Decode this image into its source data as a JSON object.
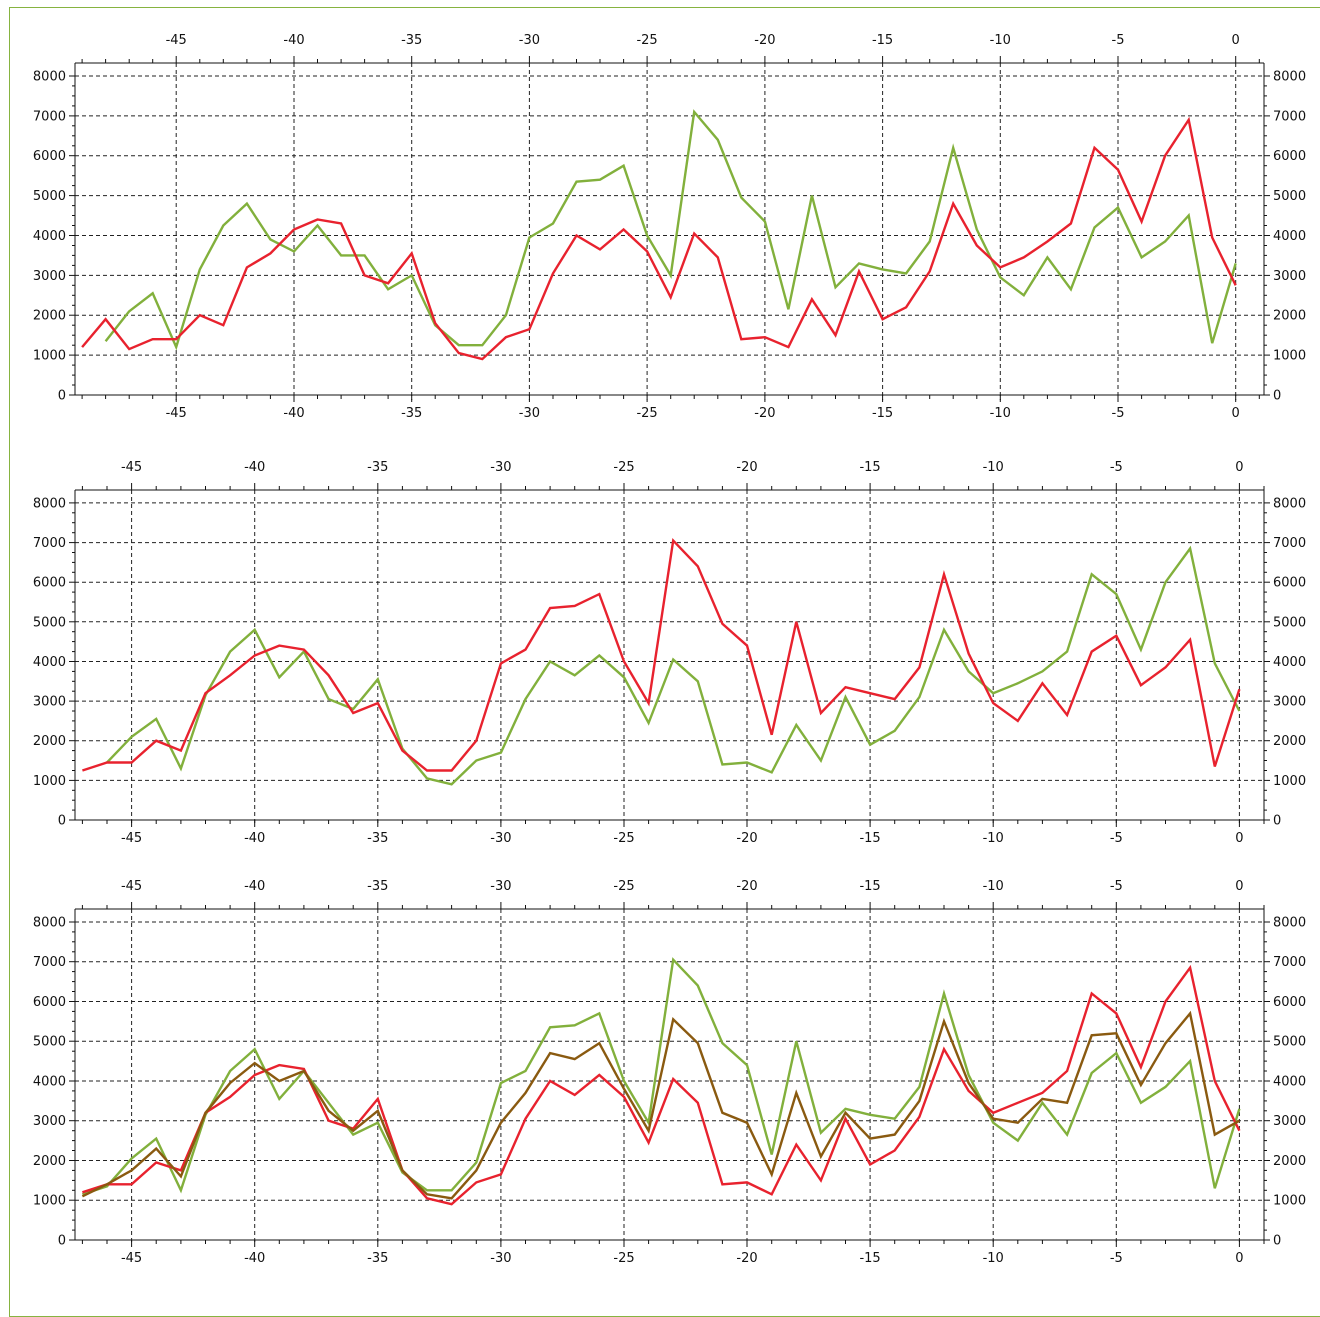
{
  "palette": {
    "red": "#e8222e",
    "green": "#82b03c",
    "brown": "#8a5a10",
    "frame": "#86b340"
  },
  "chart_data": [
    {
      "type": "line",
      "x": [
        -49,
        -48,
        -47,
        -46,
        -45,
        -44,
        -43,
        -42,
        -41,
        -40,
        -39,
        -38,
        -37,
        -36,
        -35,
        -34,
        -33,
        -32,
        -31,
        -30,
        -29,
        -28,
        -27,
        -26,
        -25,
        -24,
        -23,
        -22,
        -21,
        -20,
        -19,
        -18,
        -17,
        -16,
        -15,
        -14,
        -13,
        -12,
        -11,
        -10,
        -9,
        -8,
        -7,
        -6,
        -5,
        -4,
        -3,
        -2,
        -1,
        0
      ],
      "xlim": [
        -49.3,
        1.2
      ],
      "xticks_major": [
        -45,
        -40,
        -35,
        -30,
        -25,
        -20,
        -15,
        -10,
        -5,
        0
      ],
      "ylim": [
        0,
        8200
      ],
      "yticks": [
        0,
        1000,
        2000,
        3000,
        4000,
        5000,
        6000,
        7000,
        8000
      ],
      "grid": true,
      "series": [
        {
          "color": "#82b03c",
          "values": [
            null,
            1350,
            2100,
            2550,
            1200,
            3150,
            4250,
            4800,
            3900,
            3600,
            4250,
            3500,
            3500,
            2650,
            3000,
            1750,
            1250,
            1250,
            2000,
            3950,
            4300,
            5350,
            5400,
            5750,
            4000,
            3000,
            7100,
            6400,
            4950,
            4350,
            2150,
            5000,
            2700,
            3300,
            3150,
            3050,
            3850,
            6200,
            4150,
            2950,
            2500,
            3450,
            2650,
            4200,
            4700,
            3450,
            3850,
            4500,
            1300,
            3300
          ]
        },
        {
          "color": "#e8222e",
          "values": [
            1200,
            1900,
            1150,
            1400,
            1400,
            2000,
            1750,
            3200,
            3550,
            4150,
            4400,
            4300,
            3000,
            2800,
            3550,
            1800,
            1050,
            900,
            1450,
            1650,
            3050,
            4000,
            3650,
            4150,
            3600,
            2450,
            4050,
            3450,
            1400,
            1450,
            1200,
            2400,
            1500,
            3100,
            1900,
            2200,
            3100,
            4800,
            3750,
            3200,
            3450,
            3850,
            4300,
            6200,
            5650,
            4350,
            6000,
            6900,
            3950,
            2750
          ]
        }
      ]
    },
    {
      "type": "line",
      "x": [
        -47,
        -46,
        -45,
        -44,
        -43,
        -42,
        -41,
        -40,
        -39,
        -38,
        -37,
        -36,
        -35,
        -34,
        -33,
        -32,
        -31,
        -30,
        -29,
        -28,
        -27,
        -26,
        -25,
        -24,
        -23,
        -22,
        -21,
        -20,
        -19,
        -18,
        -17,
        -16,
        -15,
        -14,
        -13,
        -12,
        -11,
        -10,
        -9,
        -8,
        -7,
        -6,
        -5,
        -4,
        -3,
        -2,
        -1,
        0
      ],
      "xlim": [
        -47.3,
        1.0
      ],
      "xticks_major": [
        -45,
        -40,
        -35,
        -30,
        -25,
        -20,
        -15,
        -10,
        -5,
        0
      ],
      "ylim": [
        0,
        8200
      ],
      "yticks": [
        0,
        1000,
        2000,
        3000,
        4000,
        5000,
        6000,
        7000,
        8000
      ],
      "grid": true,
      "series": [
        {
          "color": "#82b03c",
          "values": [
            null,
            1450,
            2100,
            2550,
            1300,
            3150,
            4250,
            4800,
            3600,
            4250,
            3050,
            2800,
            3550,
            1800,
            1050,
            900,
            1500,
            1700,
            3050,
            4000,
            3650,
            4150,
            3600,
            2450,
            4050,
            3500,
            1400,
            1450,
            1200,
            2400,
            1500,
            3100,
            1900,
            2250,
            3100,
            4800,
            3750,
            3200,
            3450,
            3750,
            4250,
            6200,
            5700,
            4300,
            6000,
            6850,
            3950,
            2750
          ]
        },
        {
          "color": "#e8222e",
          "values": [
            1250,
            1450,
            1450,
            2000,
            1750,
            3200,
            3650,
            4150,
            4400,
            4300,
            3650,
            2700,
            2950,
            1750,
            1250,
            1250,
            2000,
            3950,
            4300,
            5350,
            5400,
            5700,
            4000,
            2950,
            7050,
            6400,
            4950,
            4400,
            2150,
            5000,
            2700,
            3350,
            3200,
            3050,
            3850,
            6200,
            4200,
            2950,
            2500,
            3450,
            2650,
            4250,
            4650,
            3400,
            3850,
            4550,
            1350,
            3300
          ]
        }
      ]
    },
    {
      "type": "line",
      "x": [
        -47,
        -46,
        -45,
        -44,
        -43,
        -42,
        -41,
        -40,
        -39,
        -38,
        -37,
        -36,
        -35,
        -34,
        -33,
        -32,
        -31,
        -30,
        -29,
        -28,
        -27,
        -26,
        -25,
        -24,
        -23,
        -22,
        -21,
        -20,
        -19,
        -18,
        -17,
        -16,
        -15,
        -14,
        -13,
        -12,
        -11,
        -10,
        -9,
        -8,
        -7,
        -6,
        -5,
        -4,
        -3,
        -2,
        -1,
        0
      ],
      "xlim": [
        -47.3,
        1.0
      ],
      "xticks_major": [
        -45,
        -40,
        -35,
        -30,
        -25,
        -20,
        -15,
        -10,
        -5,
        0
      ],
      "ylim": [
        0,
        8200
      ],
      "yticks": [
        0,
        1000,
        2000,
        3000,
        4000,
        5000,
        6000,
        7000,
        8000
      ],
      "grid": true,
      "series": [
        {
          "color": "#82b03c",
          "values": [
            1150,
            1350,
            2050,
            2550,
            1250,
            3150,
            4250,
            4800,
            3550,
            4250,
            3450,
            2650,
            2950,
            1700,
            1250,
            1250,
            1950,
            3950,
            4250,
            5350,
            5400,
            5700,
            4000,
            2950,
            7050,
            6400,
            4950,
            4400,
            2150,
            5000,
            2700,
            3300,
            3150,
            3050,
            3850,
            6200,
            4150,
            2950,
            2500,
            3450,
            2650,
            4200,
            4700,
            3450,
            3850,
            4500,
            1300,
            3300
          ]
        },
        {
          "color": "#e8222e",
          "values": [
            1200,
            1400,
            1400,
            1950,
            1750,
            3200,
            3600,
            4150,
            4400,
            4300,
            3000,
            2800,
            3550,
            1750,
            1050,
            900,
            1450,
            1650,
            3050,
            4000,
            3650,
            4150,
            3600,
            2450,
            4050,
            3450,
            1400,
            1450,
            1150,
            2400,
            1500,
            3050,
            1900,
            2250,
            3100,
            4800,
            3750,
            3200,
            3450,
            3700,
            4250,
            6200,
            5700,
            4350,
            6000,
            6850,
            4000,
            2750
          ]
        },
        {
          "color": "#8a5a10",
          "values": [
            1100,
            1400,
            1750,
            2300,
            1600,
            3200,
            3950,
            4450,
            4000,
            4250,
            3250,
            2750,
            3250,
            1750,
            1150,
            1050,
            1750,
            2950,
            3700,
            4700,
            4550,
            4950,
            3800,
            2750,
            5550,
            4950,
            3200,
            2950,
            1650,
            3700,
            2100,
            3200,
            2550,
            2650,
            3500,
            5500,
            3950,
            3050,
            2950,
            3550,
            3450,
            5150,
            5200,
            3900,
            4950,
            5700,
            2650,
            3000
          ]
        }
      ]
    }
  ]
}
